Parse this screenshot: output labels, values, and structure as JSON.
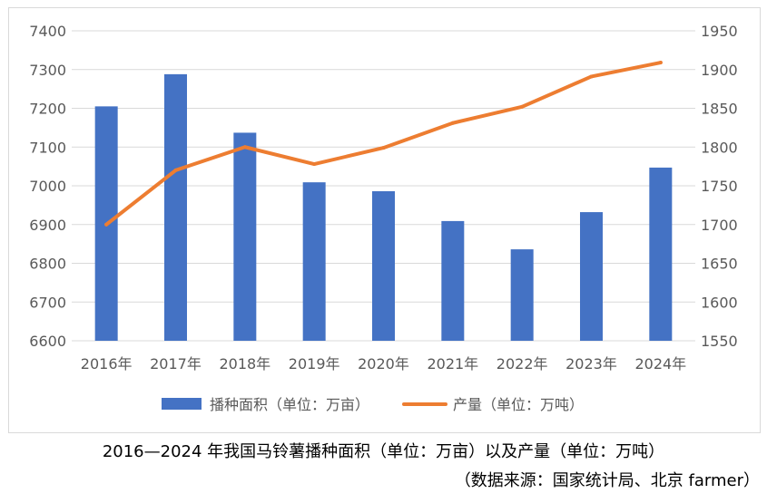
{
  "chart_data": {
    "type": "bar+line",
    "categories": [
      "2016年",
      "2017年",
      "2018年",
      "2019年",
      "2020年",
      "2021年",
      "2022年",
      "2023年",
      "2024年"
    ],
    "series": [
      {
        "name": "播种面积（单位：万亩）",
        "type": "bar",
        "axis": "left",
        "color": "#4472C4",
        "values": [
          7205,
          7288,
          7137,
          7009,
          6986,
          6909,
          6836,
          6932,
          7047
        ]
      },
      {
        "name": "产量（单位：万吨）",
        "type": "line",
        "axis": "right",
        "color": "#ED7D31",
        "values": [
          1700,
          1770,
          1800,
          1778,
          1799,
          1831,
          1852,
          1891,
          1909
        ]
      }
    ],
    "y_left": {
      "min": 6600,
      "max": 7400,
      "step": 100,
      "ticks": [
        "6600",
        "6700",
        "6800",
        "6900",
        "7000",
        "7100",
        "7200",
        "7300",
        "7400"
      ]
    },
    "y_right": {
      "min": 1550,
      "max": 1950,
      "step": 50,
      "ticks": [
        "1550",
        "1600",
        "1650",
        "1700",
        "1750",
        "1800",
        "1850",
        "1900",
        "1950"
      ]
    },
    "grid": true,
    "legend_position": "bottom"
  },
  "caption": {
    "title": "2016—2024 年我国马铃薯播种面积（单位：万亩）以及产量（单位：万吨）",
    "source": "（数据来源：国家统计局、北京 farmer）"
  }
}
